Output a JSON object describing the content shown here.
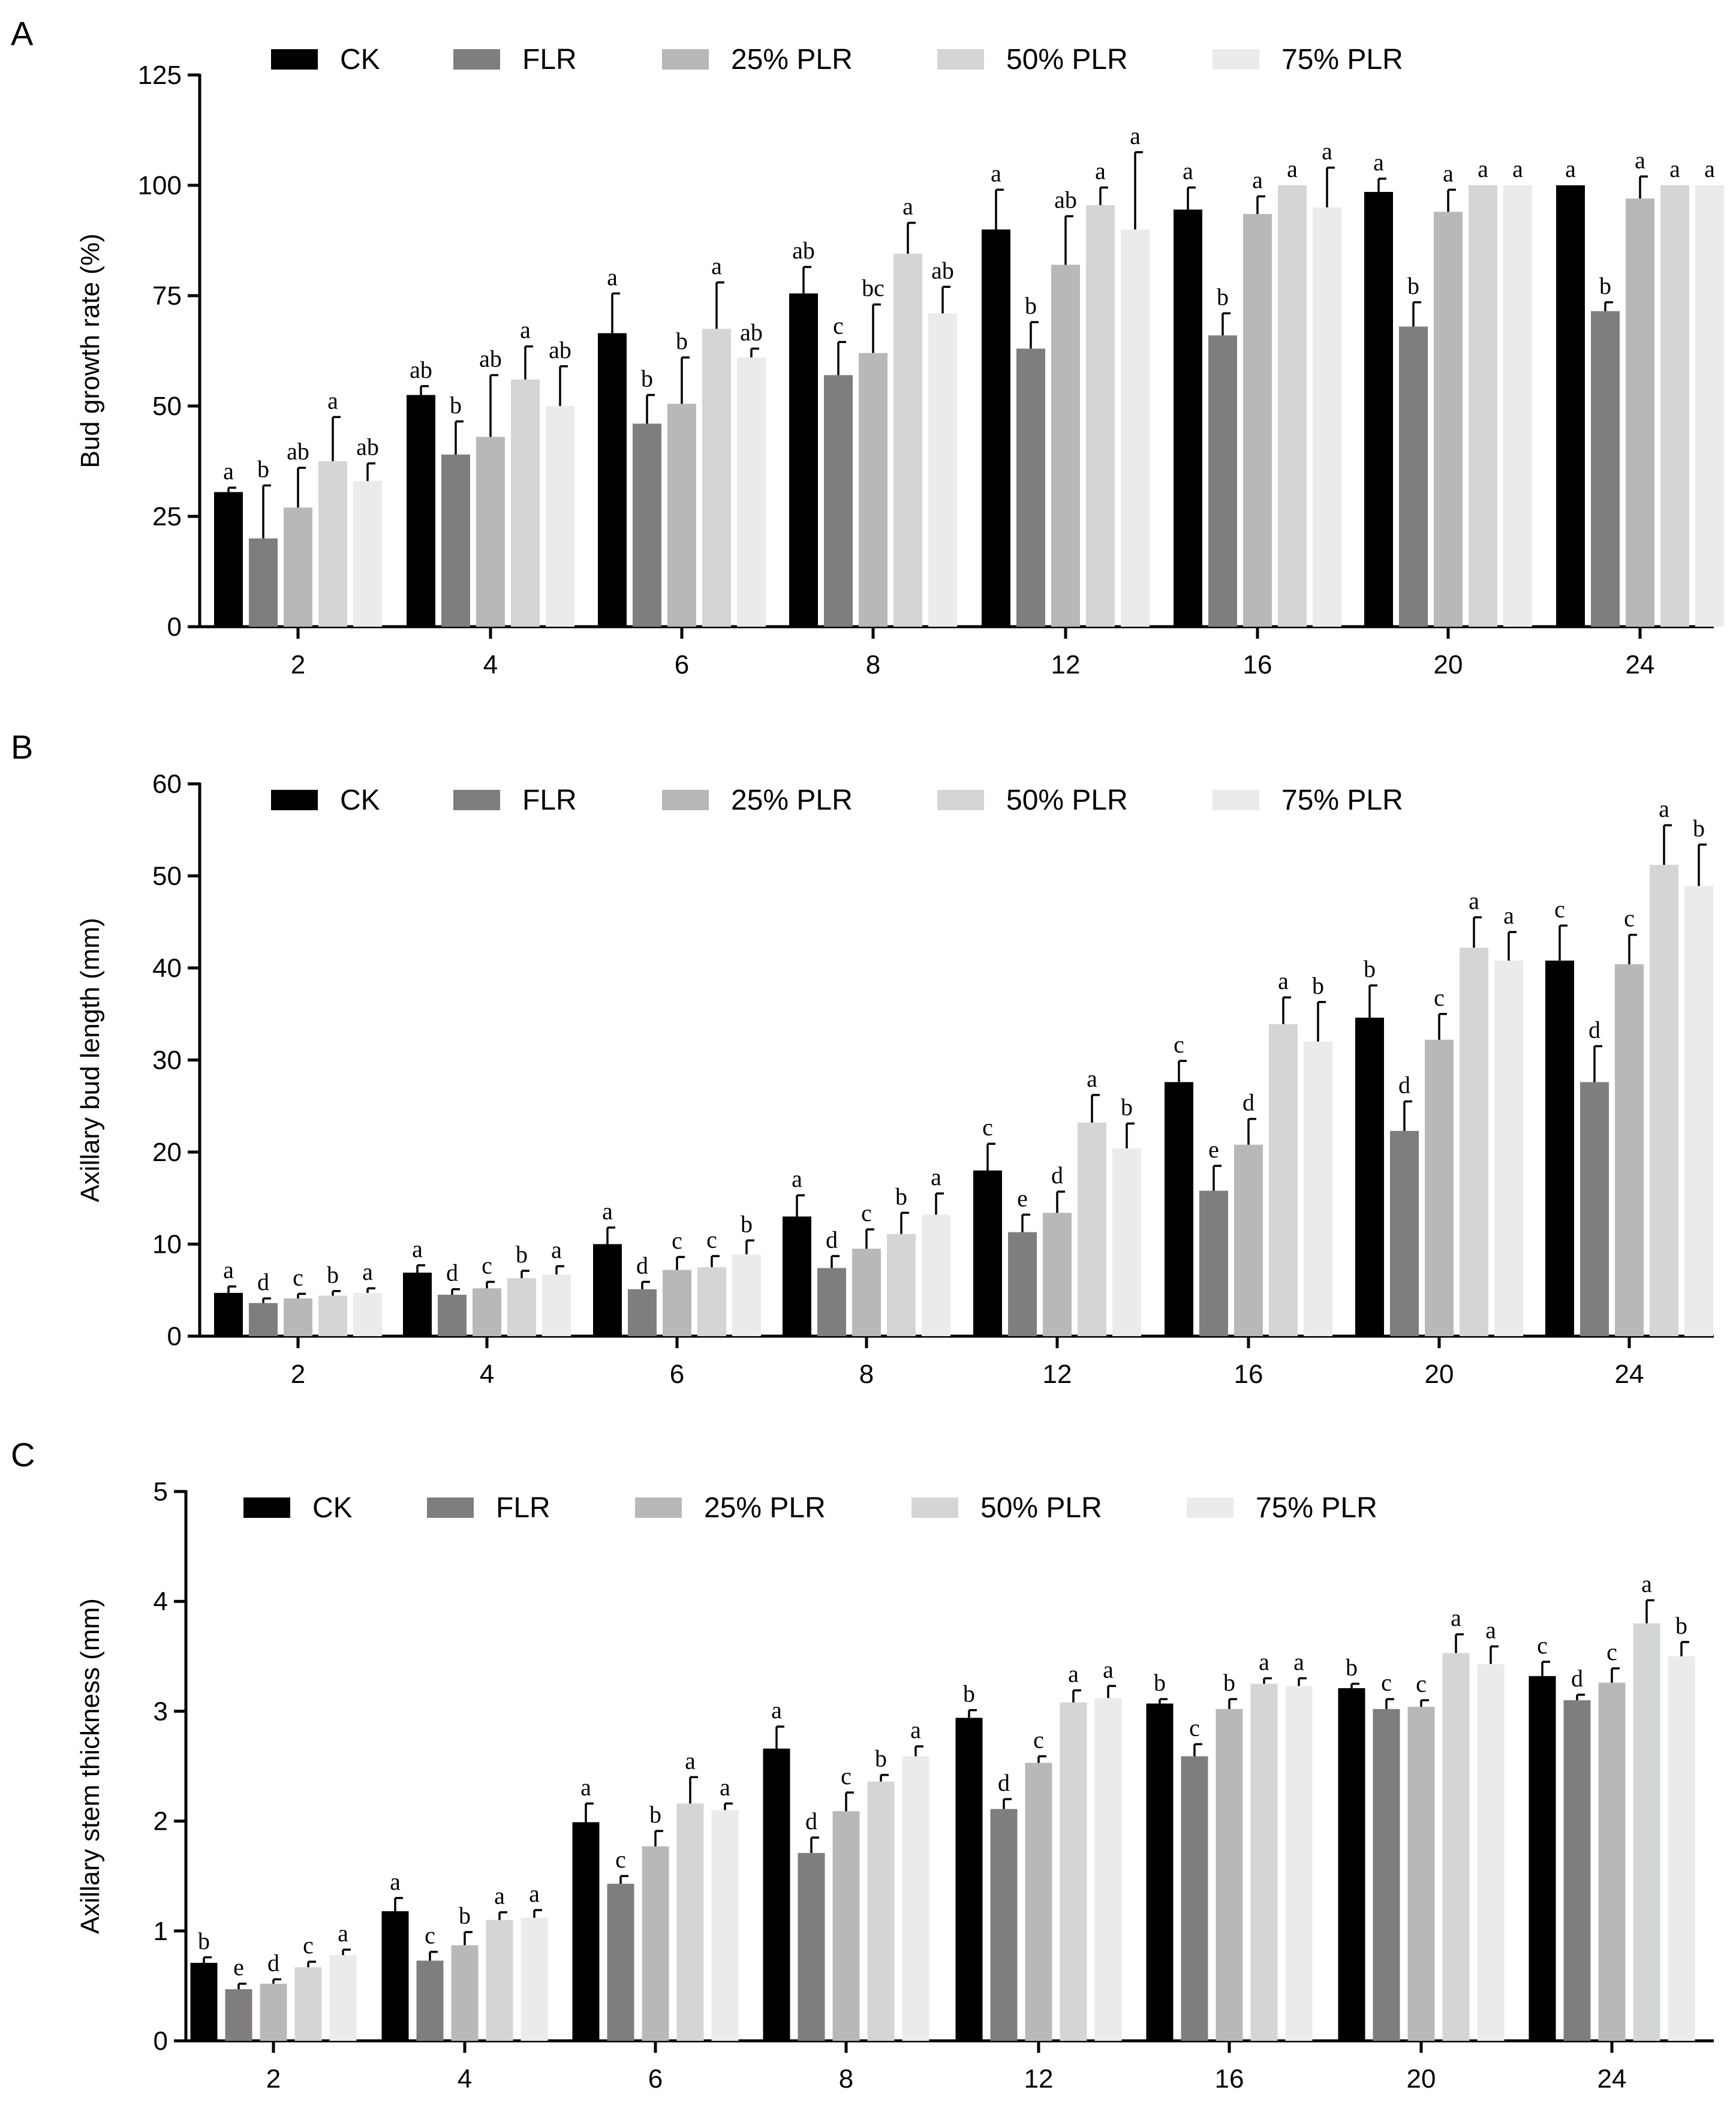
{
  "colors": {
    "CK": "#000000",
    "FLR": "#807d7f",
    "25% PLR": "#b8b8b8",
    "50% PLR": "#d4d6d6",
    "75% PLR": "#ebebee"
  },
  "chart_data": [
    {
      "type": "bar",
      "panel_label": "A",
      "ylabel": "Bud growth rate (%)",
      "ylim": [
        0,
        125
      ],
      "yticks": [
        0,
        25,
        50,
        75,
        100,
        125
      ],
      "categories": [
        "2",
        "4",
        "6",
        "8",
        "12",
        "16",
        "20",
        "24"
      ],
      "legend_position": "top",
      "series": [
        {
          "name": "CK",
          "values": [
            30.5,
            52.5,
            66.5,
            75.5,
            90,
            94.5,
            98.5,
            100
          ],
          "errors": [
            1,
            2,
            9,
            6,
            9,
            5,
            3,
            0
          ],
          "letters": [
            "a",
            "ab",
            "a",
            "ab",
            "a",
            "a",
            "a",
            "a"
          ]
        },
        {
          "name": "FLR",
          "values": [
            20,
            39,
            46,
            57,
            63,
            66,
            68,
            71.5
          ],
          "errors": [
            12,
            7.5,
            6.5,
            7.5,
            6,
            5,
            5.5,
            2
          ],
          "letters": [
            "b",
            "b",
            "b",
            "c",
            "b",
            "b",
            "b",
            "b"
          ]
        },
        {
          "name": "25% PLR",
          "values": [
            27,
            43,
            50.5,
            62,
            82,
            93.5,
            94,
            97
          ],
          "errors": [
            9,
            14,
            10.5,
            11,
            11,
            4,
            5,
            5
          ],
          "letters": [
            "ab",
            "ab",
            "b",
            "bc",
            "ab",
            "a",
            "a",
            "a"
          ]
        },
        {
          "name": "50% PLR",
          "values": [
            37.5,
            56,
            67.5,
            84.5,
            95.5,
            100,
            100,
            100
          ],
          "errors": [
            10,
            7.5,
            10.5,
            7,
            4,
            0,
            0,
            0
          ],
          "letters": [
            "a",
            "a",
            "a",
            "a",
            "a",
            "a",
            "a",
            "a"
          ]
        },
        {
          "name": "75% PLR",
          "values": [
            33,
            50,
            61,
            71,
            90,
            95,
            100,
            100
          ],
          "errors": [
            4,
            9,
            2,
            6,
            17.5,
            9,
            0,
            0
          ],
          "letters": [
            "ab",
            "ab",
            "ab",
            "ab",
            "a",
            "a",
            "a",
            "a"
          ]
        }
      ]
    },
    {
      "type": "bar",
      "panel_label": "B",
      "ylabel": "Axillary bud length (mm)",
      "ylim": [
        0,
        60
      ],
      "yticks": [
        0,
        10,
        20,
        30,
        40,
        50,
        60
      ],
      "categories": [
        "2",
        "4",
        "6",
        "8",
        "12",
        "16",
        "20",
        "24"
      ],
      "legend_position": "top",
      "series": [
        {
          "name": "CK",
          "values": [
            4.7,
            6.9,
            10,
            13,
            18,
            27.6,
            34.6,
            40.8
          ],
          "errors": [
            0.7,
            0.8,
            1.8,
            2.3,
            2.9,
            2.3,
            3.5,
            3.8
          ],
          "letters": [
            "a",
            "a",
            "a",
            "a",
            "c",
            "c",
            "b",
            "c"
          ]
        },
        {
          "name": "FLR",
          "values": [
            3.6,
            4.5,
            5.1,
            7.4,
            11.3,
            15.8,
            22.3,
            27.6
          ],
          "errors": [
            0.5,
            0.6,
            0.8,
            1.3,
            1.9,
            2.7,
            3.2,
            3.9
          ],
          "letters": [
            "d",
            "d",
            "d",
            "d",
            "e",
            "e",
            "d",
            "d"
          ]
        },
        {
          "name": "25% PLR",
          "values": [
            4.1,
            5.2,
            7.2,
            9.5,
            13.4,
            20.8,
            32.2,
            40.4
          ],
          "errors": [
            0.5,
            0.7,
            1.4,
            2.1,
            2.3,
            2.8,
            2.8,
            3.2
          ],
          "letters": [
            "c",
            "c",
            "c",
            "c",
            "d",
            "d",
            "c",
            "c"
          ]
        },
        {
          "name": "50% PLR",
          "values": [
            4.4,
            6.3,
            7.5,
            11.1,
            23.2,
            33.9,
            42.2,
            51.2
          ],
          "errors": [
            0.5,
            0.8,
            1.2,
            2.3,
            3.0,
            2.9,
            3.3,
            4.3
          ],
          "letters": [
            "b",
            "b",
            "c",
            "b",
            "a",
            "a",
            "a",
            "a"
          ]
        },
        {
          "name": "75% PLR",
          "values": [
            4.7,
            6.7,
            8.9,
            13.2,
            20.4,
            32,
            40.8,
            48.9
          ],
          "errors": [
            0.5,
            0.9,
            1.5,
            2.3,
            2.7,
            4.3,
            3.1,
            4.5
          ],
          "letters": [
            "a",
            "a",
            "b",
            "a",
            "b",
            "b",
            "a",
            "b"
          ]
        }
      ]
    },
    {
      "type": "bar",
      "panel_label": "C",
      "ylabel": "Axillary stem thickness (mm)",
      "ylim": [
        0,
        5
      ],
      "yticks": [
        0,
        1,
        2,
        3,
        4,
        5
      ],
      "categories": [
        "2",
        "4",
        "6",
        "8",
        "12",
        "16",
        "20",
        "24"
      ],
      "legend_position": "top",
      "series": [
        {
          "name": "CK",
          "values": [
            0.71,
            1.18,
            1.99,
            2.66,
            2.94,
            3.07,
            3.21,
            3.32
          ],
          "errors": [
            0.05,
            0.12,
            0.17,
            0.2,
            0.07,
            0.04,
            0.04,
            0.13
          ],
          "letters": [
            "b",
            "a",
            "a",
            "a",
            "b",
            "b",
            "b",
            "c"
          ]
        },
        {
          "name": "FLR",
          "values": [
            0.47,
            0.73,
            1.43,
            1.71,
            2.11,
            2.59,
            3.02,
            3.1
          ],
          "errors": [
            0.05,
            0.08,
            0.07,
            0.14,
            0.09,
            0.11,
            0.09,
            0.05
          ],
          "letters": [
            "e",
            "c",
            "c",
            "d",
            "d",
            "c",
            "c",
            "d"
          ]
        },
        {
          "name": "25% PLR",
          "values": [
            0.52,
            0.87,
            1.77,
            2.09,
            2.53,
            3.02,
            3.04,
            3.26
          ],
          "errors": [
            0.04,
            0.12,
            0.14,
            0.17,
            0.06,
            0.09,
            0.06,
            0.13
          ],
          "letters": [
            "d",
            "b",
            "b",
            "c",
            "c",
            "b",
            "c",
            "c"
          ]
        },
        {
          "name": "50% PLR",
          "values": [
            0.67,
            1.1,
            2.16,
            2.36,
            3.08,
            3.25,
            3.53,
            3.8
          ],
          "errors": [
            0.05,
            0.07,
            0.24,
            0.06,
            0.11,
            0.05,
            0.17,
            0.21
          ],
          "letters": [
            "c",
            "a",
            "a",
            "b",
            "a",
            "a",
            "a",
            "a"
          ]
        },
        {
          "name": "75% PLR",
          "values": [
            0.78,
            1.12,
            2.1,
            2.59,
            3.12,
            3.23,
            3.43,
            3.5
          ],
          "errors": [
            0.05,
            0.07,
            0.06,
            0.09,
            0.11,
            0.07,
            0.16,
            0.13
          ],
          "letters": [
            "a",
            "a",
            "a",
            "a",
            "a",
            "a",
            "a",
            "b"
          ]
        }
      ]
    }
  ]
}
